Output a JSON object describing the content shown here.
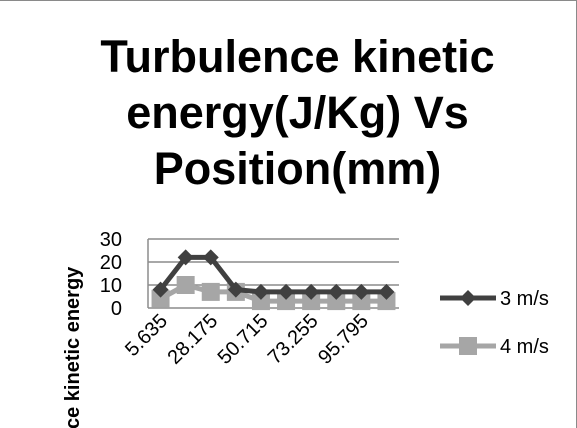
{
  "chart_data": {
    "type": "line",
    "title": "Turbulence kinetic energy(J/Kg) Vs Position(mm)",
    "ylabel": "ce kinetic energy",
    "xlabel": "",
    "ylim": [
      0,
      30
    ],
    "yticks": [
      0,
      10,
      20,
      30
    ],
    "x_tick_labels": [
      "5.635",
      "28.175",
      "50.715",
      "73.255",
      "95.795"
    ],
    "x_tick_label_every": 2,
    "grid": true,
    "legend_position": "right",
    "series": [
      {
        "name": "3 m/s",
        "marker": "diamond",
        "color": "#404040",
        "values": [
          8,
          22,
          22,
          8,
          7,
          7,
          7,
          7,
          7,
          7
        ]
      },
      {
        "name": "4 m/s",
        "marker": "square",
        "color": "#a6a6a6",
        "values": [
          4,
          10,
          7,
          7,
          3,
          3,
          3,
          3,
          3,
          3
        ]
      }
    ]
  }
}
